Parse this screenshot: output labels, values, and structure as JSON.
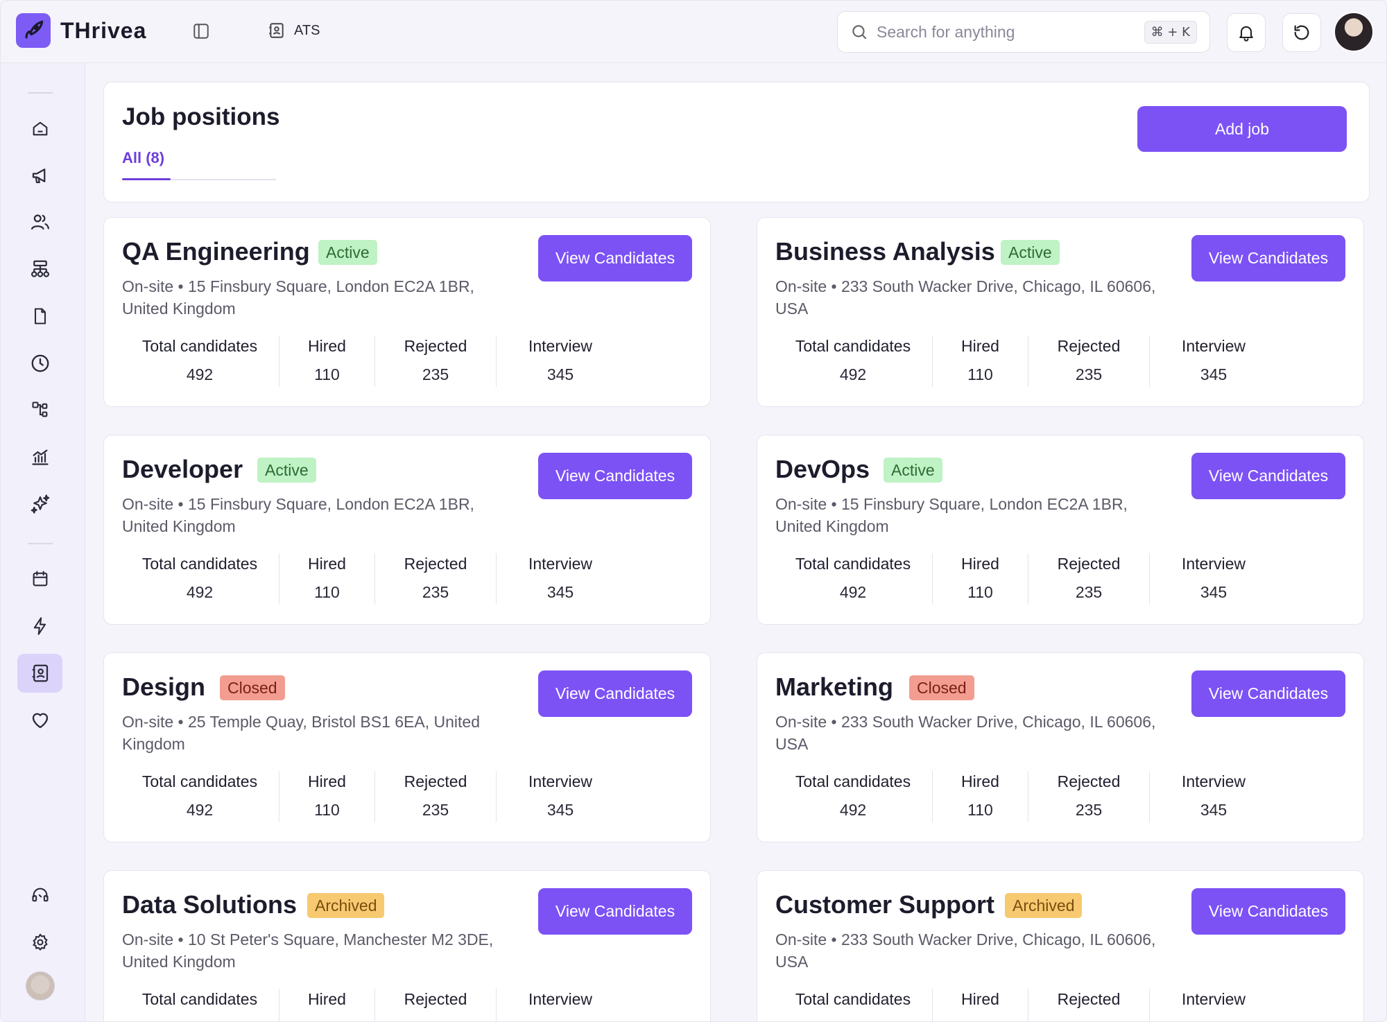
{
  "app": {
    "name": "THrivea",
    "breadcrumb": "ATS",
    "brand_color": "#7c52f5"
  },
  "search": {
    "placeholder": "Search for anything",
    "shortcut": "⌘ + K"
  },
  "topbar": {
    "icons": [
      "bell-icon",
      "refresh-icon",
      "user-avatar"
    ]
  },
  "sidebar": {
    "items": [
      {
        "icon": "home-icon",
        "active": false
      },
      {
        "icon": "megaphone-icon",
        "active": false
      },
      {
        "icon": "users-icon",
        "active": false
      },
      {
        "icon": "org-chart-icon",
        "active": false
      },
      {
        "icon": "document-icon",
        "active": false
      },
      {
        "icon": "clock-icon",
        "active": false
      },
      {
        "icon": "workflow-icon",
        "active": false
      },
      {
        "icon": "analytics-icon",
        "active": false
      },
      {
        "icon": "sparkles-icon",
        "active": false
      },
      {
        "icon": "calendar-icon",
        "active": false
      },
      {
        "icon": "lightning-icon",
        "active": false
      },
      {
        "icon": "contact-book-icon",
        "active": true
      },
      {
        "icon": "heart-icon",
        "active": false
      },
      {
        "icon": "support-icon",
        "active": false
      },
      {
        "icon": "settings-icon",
        "active": false
      }
    ]
  },
  "page": {
    "title": "Job positions",
    "tab_all": "All (8)",
    "add_job": "Add job"
  },
  "stat_labels": {
    "total": "Total candidates",
    "hired": "Hired",
    "rejected": "Rejected",
    "interview": "Interview"
  },
  "view_button": "View Candidates",
  "jobs": [
    {
      "title": "QA Engineering",
      "status": "Active",
      "location": "On-site • 15 Finsbury Square, London EC2A 1BR, United Kingdom",
      "total": "492",
      "hired": "110",
      "rejected": "235",
      "interview": "345"
    },
    {
      "title": "Business Analysis",
      "status": "Active",
      "location": "On-site • 233 South Wacker Drive, Chicago, IL 60606, USA",
      "total": "492",
      "hired": "110",
      "rejected": "235",
      "interview": "345"
    },
    {
      "title": "Developer",
      "status": "Active",
      "location": "On-site • 15 Finsbury Square, London EC2A 1BR, United Kingdom",
      "total": "492",
      "hired": "110",
      "rejected": "235",
      "interview": "345"
    },
    {
      "title": "DevOps",
      "status": "Active",
      "location": "On-site • 15 Finsbury Square, London EC2A 1BR, United Kingdom",
      "total": "492",
      "hired": "110",
      "rejected": "235",
      "interview": "345"
    },
    {
      "title": "Design",
      "status": "Closed",
      "location": "On-site • 25 Temple Quay, Bristol BS1 6EA, United Kingdom",
      "total": "492",
      "hired": "110",
      "rejected": "235",
      "interview": "345"
    },
    {
      "title": "Marketing",
      "status": "Closed",
      "location": "On-site • 233 South Wacker Drive, Chicago, IL 60606, USA",
      "total": "492",
      "hired": "110",
      "rejected": "235",
      "interview": "345"
    },
    {
      "title": "Data Solutions",
      "status": "Archived",
      "location": "On-site • 10 St Peter's Square, Manchester M2 3DE, United Kingdom",
      "total": "",
      "hired": "",
      "rejected": "",
      "interview": ""
    },
    {
      "title": "Customer Support",
      "status": "Archived",
      "location": "On-site • 233 South Wacker Drive, Chicago, IL 60606, USA",
      "total": "",
      "hired": "",
      "rejected": "",
      "interview": ""
    }
  ]
}
